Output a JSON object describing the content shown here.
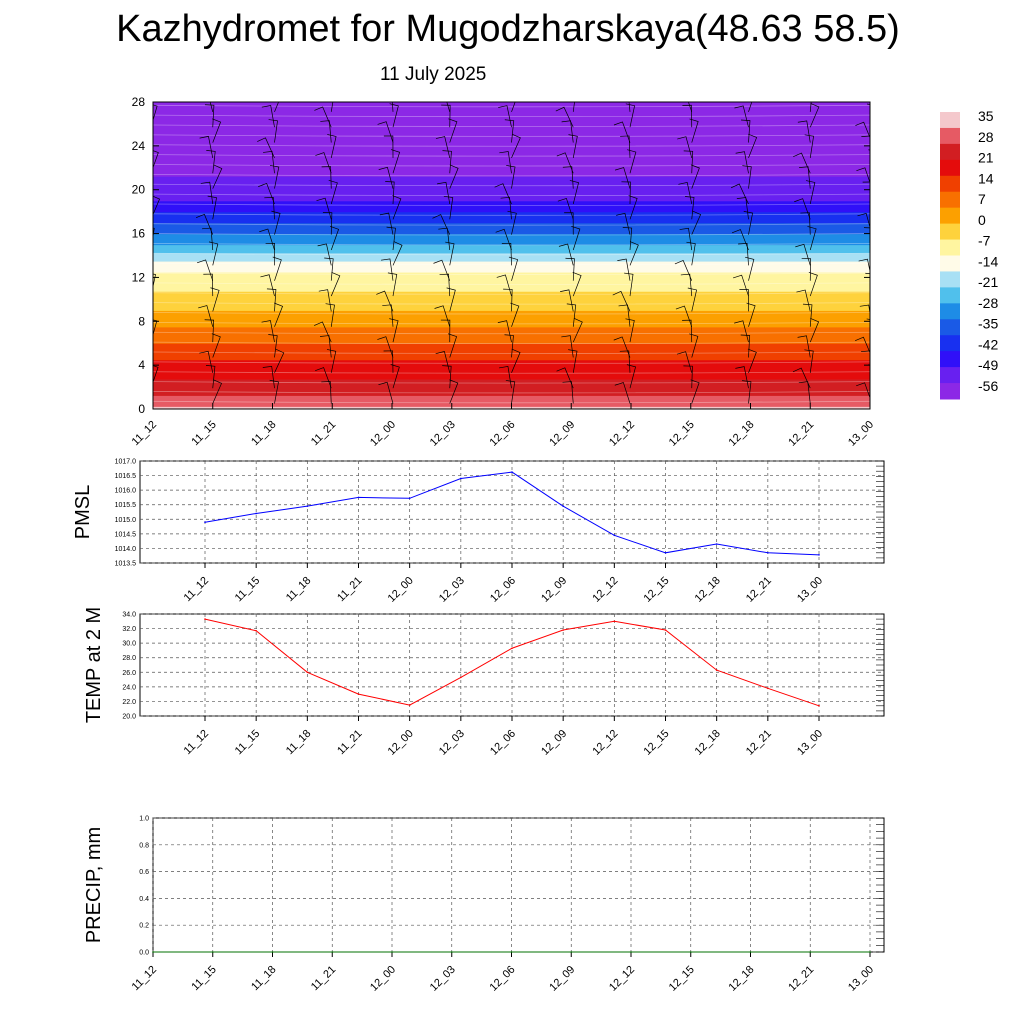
{
  "page": {
    "title": "Kazhydromet for Mugodzharskaya(48.63 58.5)",
    "subtitle": "11 July 2025"
  },
  "colors": {
    "pmsl_line": "#0000ff",
    "temp_line": "#ff0000",
    "precip_line": "#007000",
    "grid": "#555555"
  },
  "chart_data": [
    {
      "type": "heatmap",
      "title": "",
      "x_labels": [
        "11_12",
        "11_15",
        "11_18",
        "11_21",
        "12_00",
        "12_03",
        "12_06",
        "12_09",
        "12_12",
        "12_15",
        "12_18",
        "12_21",
        "13_00"
      ],
      "y_ticks": [
        0,
        4,
        8,
        12,
        16,
        20,
        24,
        28
      ],
      "ylim": [
        0,
        28
      ],
      "colorbar_labels": [
        "35",
        "28",
        "21",
        "14",
        "7",
        "0",
        "-7",
        "-14",
        "-21",
        "-28",
        "-35",
        "-42",
        "-49",
        "-56"
      ],
      "colorbar_colors": [
        "#f4c8cc",
        "#e65a64",
        "#d21e22",
        "#e40c0c",
        "#f04000",
        "#f87000",
        "#fca000",
        "#fed23c",
        "#fff5a0",
        "#fffbe8",
        "#a8e0f4",
        "#50c0ec",
        "#1e8ce6",
        "#1a5ae6",
        "#1830f0",
        "#3010f8",
        "#6820f0",
        "#8c28e6"
      ],
      "height_profile": [
        {
          "z": 0,
          "t": 33
        },
        {
          "z": 2,
          "t": 24
        },
        {
          "z": 4,
          "t": 18
        },
        {
          "z": 6,
          "t": 11
        },
        {
          "z": 8,
          "t": 4
        },
        {
          "z": 10,
          "t": -3
        },
        {
          "z": 12,
          "t": -9
        },
        {
          "z": 13,
          "t": -12
        },
        {
          "z": 14,
          "t": -20
        },
        {
          "z": 16,
          "t": -32
        },
        {
          "z": 18,
          "t": -43
        },
        {
          "z": 20,
          "t": -52
        },
        {
          "z": 22,
          "t": -54
        },
        {
          "z": 24,
          "t": -55
        },
        {
          "z": 28,
          "t": -58
        }
      ],
      "has_wind_barbs": true
    },
    {
      "type": "line",
      "ylabel": "PMSL",
      "x_labels": [
        "11_12",
        "11_15",
        "11_18",
        "11_21",
        "12_00",
        "12_03",
        "12_06",
        "12_09",
        "12_12",
        "12_15",
        "12_18",
        "12_21",
        "13_00"
      ],
      "ylim": [
        1013.5,
        1017.0
      ],
      "y_ticks": [
        "1013.5",
        "1014.0",
        "1014.5",
        "1015.0",
        "1015.5",
        "1016.0",
        "1016.5",
        "1017.0"
      ],
      "series": [
        {
          "values": [
            1014.9,
            1015.2,
            1015.45,
            1015.75,
            1015.72,
            1016.4,
            1016.62,
            1015.45,
            1014.45,
            1013.85,
            1014.15,
            1013.85,
            1013.78
          ]
        }
      ],
      "grid": true
    },
    {
      "type": "line",
      "ylabel": "TEMP at 2 M",
      "x_labels": [
        "11_12",
        "11_15",
        "11_18",
        "11_21",
        "12_00",
        "12_03",
        "12_06",
        "12_09",
        "12_12",
        "12_15",
        "12_18",
        "12_21",
        "13_00"
      ],
      "ylim": [
        20.0,
        34.0
      ],
      "y_ticks": [
        "20.0",
        "22.0",
        "24.0",
        "26.0",
        "28.0",
        "30.0",
        "32.0",
        "34.0"
      ],
      "series": [
        {
          "values": [
            33.3,
            31.7,
            26.0,
            23.0,
            21.5,
            25.3,
            29.3,
            31.8,
            33.0,
            31.8,
            26.3,
            23.8,
            21.4
          ]
        }
      ],
      "grid": true
    },
    {
      "type": "line",
      "ylabel": "PRECIP, mm",
      "x_labels": [
        "11_12",
        "11_15",
        "11_18",
        "11_21",
        "12_00",
        "12_03",
        "12_06",
        "12_09",
        "12_12",
        "12_15",
        "12_18",
        "12_21",
        "13_00"
      ],
      "ylim": [
        0.0,
        1.0
      ],
      "y_ticks": [
        "0.0",
        "0.2",
        "0.4",
        "0.6",
        "0.8",
        "1.0"
      ],
      "series": [
        {
          "values": [
            0,
            0,
            0,
            0,
            0,
            0,
            0,
            0,
            0,
            0,
            0,
            0,
            0
          ]
        }
      ],
      "grid": true
    }
  ]
}
